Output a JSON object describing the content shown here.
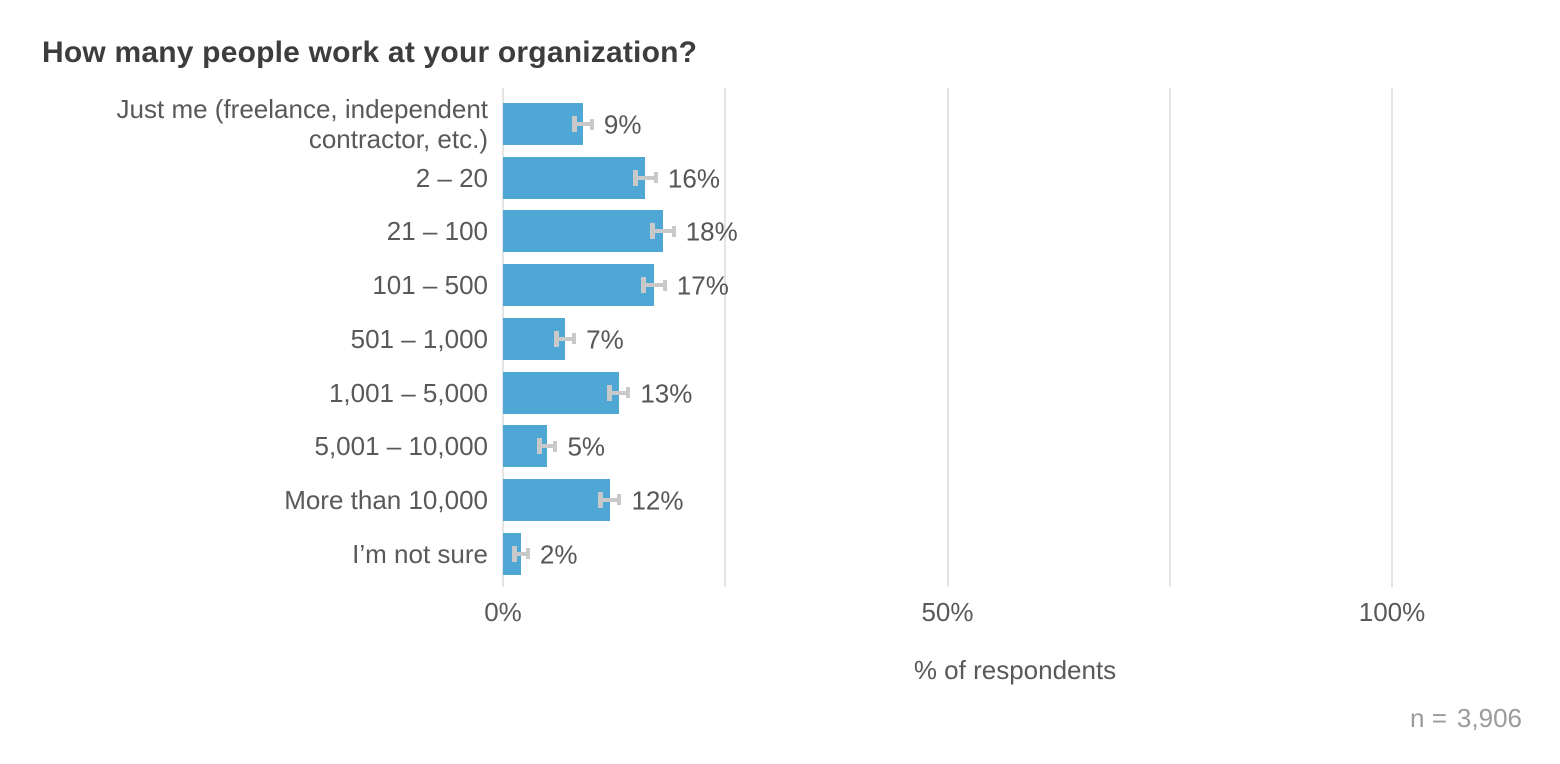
{
  "title": "How many people work at your organization?",
  "chart_data": {
    "type": "bar",
    "orientation": "horizontal",
    "title": "How many people work at your organization?",
    "categories": [
      "Just me (freelance, independent contractor, etc.)",
      "2 – 20",
      "21 – 100",
      "101 – 500",
      "501 – 1,000",
      "1,001 – 5,000",
      "5,001 – 10,000",
      "More than 10,000",
      "I’m not sure"
    ],
    "values": [
      9,
      16,
      18,
      17,
      7,
      13,
      5,
      12,
      2
    ],
    "value_labels": [
      "9%",
      "16%",
      "18%",
      "17%",
      "7%",
      "13%",
      "5%",
      "12%",
      "2%"
    ],
    "errors": [
      1.0,
      1.2,
      1.2,
      1.2,
      1.0,
      1.1,
      0.9,
      1.1,
      0.8
    ],
    "xlabel": "% of respondents",
    "xlim": [
      0,
      100
    ],
    "gridline_values": [
      0,
      25,
      50,
      75,
      100
    ],
    "x_tick_labels": [
      {
        "pct": 0,
        "label": "0%"
      },
      {
        "pct": 50,
        "label": "50%"
      },
      {
        "pct": 100,
        "label": "100%"
      }
    ],
    "grid": "vertical-only",
    "legend": "none",
    "sample_size_prefix": "n =",
    "sample_size": "3,906",
    "colors": {
      "bar": "#4ea7d5",
      "error_bar": "#c9c9c9",
      "gridline": "#e4e4e4",
      "title_text": "#3d3d3d",
      "label_text": "#58595b",
      "note_text": "#9b9b9b",
      "background": "#ffffff"
    }
  }
}
